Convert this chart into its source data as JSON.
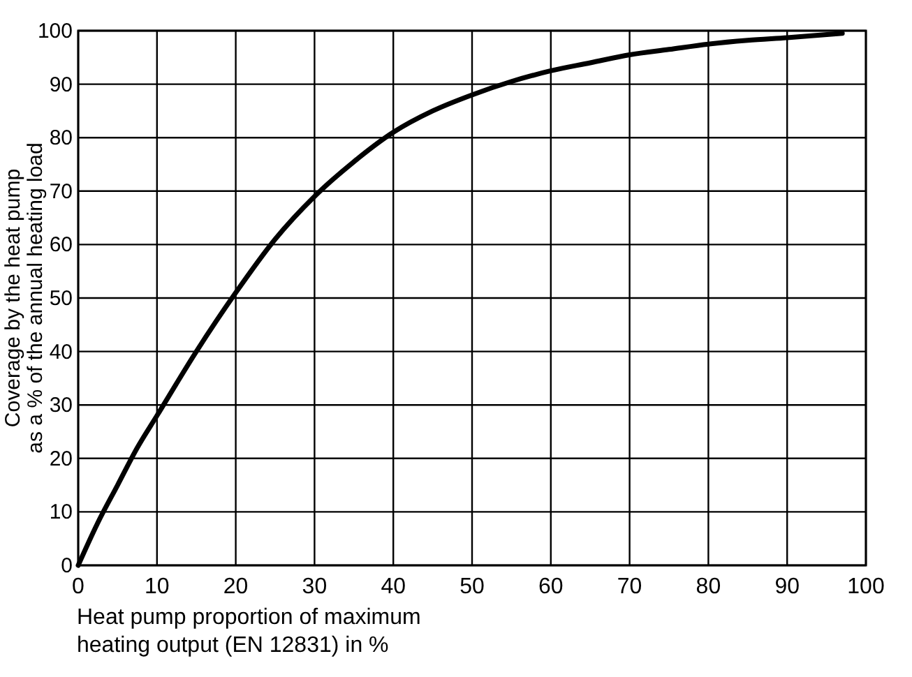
{
  "chart_data": {
    "type": "line",
    "xlabel": "Heat pump proportion of maximum\nheating output (EN 12831) in %",
    "ylabel": "Coverage by the heat pump\nas a % of the annual heating load",
    "x": [
      0,
      2.5,
      5,
      7.5,
      10,
      15,
      20,
      25,
      30,
      35,
      40,
      45,
      50,
      55,
      60,
      65,
      70,
      75,
      80,
      85,
      90,
      97
    ],
    "series": [
      {
        "color": "#000000",
        "values": [
          0,
          8,
          15,
          22,
          28,
          40,
          51,
          61,
          69,
          75.5,
          81,
          85,
          88,
          90.5,
          92.5,
          94,
          95.5,
          96.5,
          97.5,
          98.2,
          98.7,
          99.5
        ]
      }
    ],
    "xlim": [
      0,
      100
    ],
    "ylim": [
      0,
      100
    ],
    "xticks": [
      0,
      10,
      20,
      30,
      40,
      50,
      60,
      70,
      80,
      90,
      100
    ],
    "yticks": [
      0,
      10,
      20,
      30,
      40,
      50,
      60,
      70,
      80,
      90,
      100
    ],
    "grid": true,
    "marker": "none",
    "line_style": "solid"
  }
}
